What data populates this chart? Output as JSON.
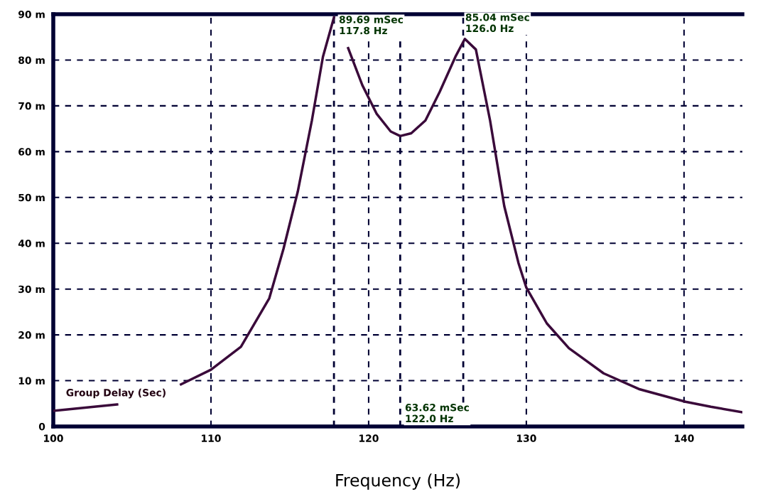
{
  "chart_data": {
    "type": "line",
    "xlabel": "Frequency (Hz)",
    "x": [
      100,
      104.05,
      106,
      108.1,
      110,
      111.9,
      113.7,
      114.6,
      115.5,
      116.4,
      117.1,
      117.8,
      118.2,
      118.7,
      119.6,
      120.5,
      121.4,
      122.0,
      122.7,
      123.6,
      124.5,
      125.5,
      126.1,
      126.8,
      127.7,
      128.6,
      129.5,
      130.0,
      131.3,
      132.7,
      134.9,
      137.2,
      140.1,
      141.7,
      143.7
    ],
    "series": [
      {
        "color": "#3a0a3a",
        "values": [
          3.4,
          4.8,
          null,
          9.2,
          12.4,
          17.4,
          28,
          38.8,
          51.2,
          66.8,
          80.7,
          89.3,
          null,
          82.6,
          74.5,
          68.3,
          64.4,
          63.4,
          64,
          66.8,
          73,
          80.7,
          84.6,
          82.3,
          66.8,
          48.1,
          35.7,
          30.3,
          22.5,
          17.1,
          11.6,
          8.1,
          5.4,
          4.3,
          3.1
        ]
      }
    ],
    "xlim": [
      100,
      143.7
    ],
    "xticks": [
      100,
      110,
      120,
      130,
      140
    ],
    "ylim": [
      0,
      90
    ],
    "yticks": [
      {
        "value": 0,
        "label": "0"
      },
      {
        "value": 10,
        "label": "10 m"
      },
      {
        "value": 20,
        "label": "20 m"
      },
      {
        "value": 30,
        "label": "30 m"
      },
      {
        "value": 40,
        "label": "40 m"
      },
      {
        "value": 50,
        "label": "50 m"
      },
      {
        "value": 60,
        "label": "60 m"
      },
      {
        "value": 70,
        "label": "70 m"
      },
      {
        "value": 80,
        "label": "80 m"
      },
      {
        "value": 90,
        "label": "90 m"
      }
    ],
    "grid": true,
    "line_style": "solid",
    "marker": "none",
    "ref_lines": [
      {
        "axis": "x",
        "value": 117.8,
        "color": "#000033",
        "line_style": "dashed"
      },
      {
        "axis": "x",
        "value": 122.0,
        "color": "#000033",
        "line_style": "dashed",
        "label": "63.62 mSec\n122.0 Hz"
      },
      {
        "axis": "x",
        "value": 126.0,
        "color": "#000033",
        "line_style": "dashed"
      }
    ],
    "annotations": [
      {
        "text": "89.69 mSec\n117.8 Hz",
        "x": 117.8,
        "y": 89.69
      },
      {
        "text": "85.04 mSec\n126.0 Hz",
        "x": 126.0,
        "y": 85.04
      },
      "Group Delay (Sec)"
    ]
  }
}
